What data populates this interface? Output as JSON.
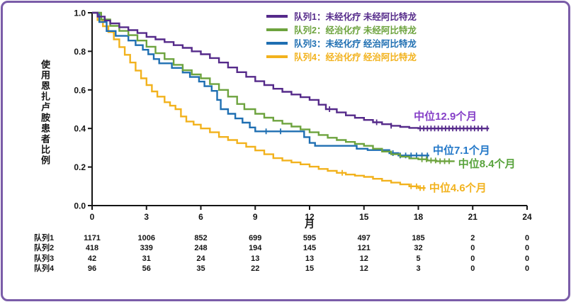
{
  "frame": {
    "border_color": "#7a5ca8",
    "background": "#ffffff"
  },
  "chart_data": {
    "type": "line",
    "subtype": "kaplan-meier-step",
    "title": "",
    "xlabel": "月",
    "ylabel": "使用恩扎卢胺患者比例",
    "xlim": [
      0,
      24
    ],
    "ylim": [
      0,
      1
    ],
    "xticks": [
      0,
      3,
      6,
      9,
      12,
      15,
      18,
      21,
      24
    ],
    "yticks": [
      "0.0",
      "0.2",
      "0.4",
      "0.6",
      "0.8",
      "1.0"
    ],
    "grid": false,
    "legend_position": "top-right-inside",
    "series": [
      {
        "id": 1,
        "name": "队列1：未经化疗 未经阿比特龙",
        "color": "#552a8a",
        "label_color": "#8640c8",
        "median_months": 12.9,
        "median_label": "中位12.9个月",
        "median_label_at": [
          17.75,
          0.47
        ],
        "points": [
          [
            0,
            1.0
          ],
          [
            0.3,
            0.98
          ],
          [
            0.7,
            0.96
          ],
          [
            1,
            0.945
          ],
          [
            1.5,
            0.925
          ],
          [
            2,
            0.91
          ],
          [
            2.5,
            0.895
          ],
          [
            3,
            0.875
          ],
          [
            3.5,
            0.862
          ],
          [
            4,
            0.848
          ],
          [
            4.5,
            0.832
          ],
          [
            5,
            0.818
          ],
          [
            5.5,
            0.8
          ],
          [
            6,
            0.785
          ],
          [
            6.5,
            0.765
          ],
          [
            7,
            0.742
          ],
          [
            7.5,
            0.716
          ],
          [
            8,
            0.692
          ],
          [
            8.5,
            0.668
          ],
          [
            9,
            0.645
          ],
          [
            9.5,
            0.625
          ],
          [
            10,
            0.606
          ],
          [
            10.5,
            0.59
          ],
          [
            11,
            0.576
          ],
          [
            11.5,
            0.562
          ],
          [
            12,
            0.548
          ],
          [
            12.5,
            0.523
          ],
          [
            12.9,
            0.5
          ],
          [
            13.5,
            0.483
          ],
          [
            14,
            0.468
          ],
          [
            14.5,
            0.455
          ],
          [
            15,
            0.444
          ],
          [
            15.5,
            0.432
          ],
          [
            16,
            0.422
          ],
          [
            16.5,
            0.414
          ],
          [
            17,
            0.408
          ],
          [
            17.5,
            0.403
          ],
          [
            18,
            0.4
          ],
          [
            21.9,
            0.4
          ]
        ],
        "censors": [
          13.1,
          15.7,
          16.5,
          18.1,
          18.3,
          18.5,
          18.7,
          18.9,
          19.1,
          19.3,
          19.5,
          19.7,
          19.9,
          20.1,
          20.3,
          20.5,
          20.7,
          20.9,
          21.1,
          21.3,
          21.5,
          21.8
        ]
      },
      {
        "id": 2,
        "name": "队列2：经治化疗 未经阿比特龙",
        "color": "#6da33e",
        "label_color": "#58a33c",
        "median_months": 8.4,
        "median_label": "中位8.4个月",
        "median_label_at": [
          20.2,
          0.225
        ],
        "points": [
          [
            0,
            1.0
          ],
          [
            0.5,
            0.965
          ],
          [
            1,
            0.932
          ],
          [
            1.5,
            0.906
          ],
          [
            2,
            0.884
          ],
          [
            2.5,
            0.856
          ],
          [
            3,
            0.824
          ],
          [
            3.5,
            0.79
          ],
          [
            4,
            0.76
          ],
          [
            4.5,
            0.73
          ],
          [
            5,
            0.702
          ],
          [
            5.5,
            0.68
          ],
          [
            6,
            0.66
          ],
          [
            6.5,
            0.63
          ],
          [
            7,
            0.6
          ],
          [
            7.5,
            0.565
          ],
          [
            8,
            0.527
          ],
          [
            8.4,
            0.5
          ],
          [
            9,
            0.476
          ],
          [
            9.5,
            0.456
          ],
          [
            10,
            0.44
          ],
          [
            10.5,
            0.425
          ],
          [
            11,
            0.41
          ],
          [
            11.5,
            0.395
          ],
          [
            12,
            0.38
          ],
          [
            12.5,
            0.366
          ],
          [
            13,
            0.352
          ],
          [
            13.5,
            0.34
          ],
          [
            14,
            0.33
          ],
          [
            14.5,
            0.32
          ],
          [
            15,
            0.31
          ],
          [
            15.5,
            0.295
          ],
          [
            16,
            0.28
          ],
          [
            16.5,
            0.266
          ],
          [
            17,
            0.254
          ],
          [
            17.5,
            0.245
          ],
          [
            18,
            0.24
          ],
          [
            18.5,
            0.234
          ],
          [
            19,
            0.23
          ],
          [
            20,
            0.23
          ]
        ],
        "censors": [
          18.2,
          18.45,
          18.7,
          18.95,
          19.2,
          19.45,
          19.7
        ]
      },
      {
        "id": 3,
        "name": "队列3：未经化疗 经治阿比特龙",
        "color": "#1f6fb2",
        "label_color": "#2277c8",
        "median_months": 7.1,
        "median_label": "中位7.1个月",
        "median_label_at": [
          18.8,
          0.295
        ],
        "points": [
          [
            0,
            1.0
          ],
          [
            0.4,
            0.952
          ],
          [
            0.8,
            0.905
          ],
          [
            1.3,
            0.88
          ],
          [
            2,
            0.856
          ],
          [
            2.4,
            0.832
          ],
          [
            2.8,
            0.808
          ],
          [
            3.1,
            0.785
          ],
          [
            3.4,
            0.76
          ],
          [
            3.7,
            0.738
          ],
          [
            4.4,
            0.714
          ],
          [
            5,
            0.69
          ],
          [
            5.4,
            0.667
          ],
          [
            5.9,
            0.643
          ],
          [
            6.2,
            0.619
          ],
          [
            6.6,
            0.595
          ],
          [
            6.9,
            0.548
          ],
          [
            7.1,
            0.5
          ],
          [
            7.5,
            0.476
          ],
          [
            7.9,
            0.452
          ],
          [
            8.3,
            0.43
          ],
          [
            8.7,
            0.405
          ],
          [
            9,
            0.385
          ],
          [
            11.4,
            0.385
          ],
          [
            11.7,
            0.355
          ],
          [
            12,
            0.325
          ],
          [
            12.3,
            0.31
          ],
          [
            14.2,
            0.31
          ],
          [
            14.6,
            0.295
          ],
          [
            15.2,
            0.288
          ],
          [
            16.4,
            0.272
          ],
          [
            16.9,
            0.26
          ],
          [
            18.6,
            0.26
          ]
        ],
        "censors": [
          9.6,
          10.4,
          16.6,
          17.0,
          17.3,
          17.6,
          17.9,
          18.2,
          18.5
        ]
      },
      {
        "id": 4,
        "name": "队列4：经治化疗 经治阿比特龙",
        "color": "#f2b21d",
        "label_color": "#f2b21d",
        "median_months": 4.6,
        "median_label": "中位4.6个月",
        "median_label_at": [
          18.6,
          0.1
        ],
        "points": [
          [
            0,
            1.0
          ],
          [
            0.3,
            0.962
          ],
          [
            0.6,
            0.93
          ],
          [
            0.9,
            0.9
          ],
          [
            1.2,
            0.862
          ],
          [
            1.5,
            0.822
          ],
          [
            1.8,
            0.782
          ],
          [
            2.1,
            0.742
          ],
          [
            2.4,
            0.7
          ],
          [
            2.7,
            0.66
          ],
          [
            3,
            0.625
          ],
          [
            3.3,
            0.592
          ],
          [
            3.6,
            0.565
          ],
          [
            4,
            0.536
          ],
          [
            4.3,
            0.518
          ],
          [
            4.6,
            0.5
          ],
          [
            4.9,
            0.462
          ],
          [
            5.2,
            0.436
          ],
          [
            5.6,
            0.42
          ],
          [
            6,
            0.4
          ],
          [
            6.5,
            0.38
          ],
          [
            7,
            0.356
          ],
          [
            7.5,
            0.34
          ],
          [
            8,
            0.324
          ],
          [
            8.5,
            0.305
          ],
          [
            9,
            0.286
          ],
          [
            9.5,
            0.266
          ],
          [
            10,
            0.246
          ],
          [
            10.5,
            0.234
          ],
          [
            11,
            0.224
          ],
          [
            11.5,
            0.214
          ],
          [
            12,
            0.202
          ],
          [
            12.5,
            0.19
          ],
          [
            13,
            0.18
          ],
          [
            13.5,
            0.17
          ],
          [
            14,
            0.161
          ],
          [
            14.5,
            0.155
          ],
          [
            15,
            0.149
          ],
          [
            15.5,
            0.139
          ],
          [
            16,
            0.129
          ],
          [
            16.5,
            0.119
          ],
          [
            17,
            0.11
          ],
          [
            17.5,
            0.1
          ],
          [
            18,
            0.091
          ],
          [
            18.4,
            0.091
          ]
        ],
        "censors": [
          13.8,
          17.6,
          17.9,
          18.1,
          18.3
        ]
      }
    ],
    "risk_table": {
      "time_points": [
        0,
        3,
        6,
        9,
        12,
        15,
        18,
        21,
        24
      ],
      "rows": [
        {
          "label": "队列1",
          "values": [
            1171,
            1006,
            852,
            699,
            595,
            497,
            185,
            2,
            0
          ]
        },
        {
          "label": "队列2",
          "values": [
            418,
            339,
            248,
            194,
            145,
            121,
            32,
            0,
            0
          ]
        },
        {
          "label": "队列3",
          "values": [
            42,
            31,
            24,
            13,
            13,
            12,
            5,
            0,
            0
          ]
        },
        {
          "label": "队列4",
          "values": [
            96,
            56,
            35,
            22,
            15,
            12,
            3,
            0,
            0
          ]
        }
      ]
    }
  }
}
